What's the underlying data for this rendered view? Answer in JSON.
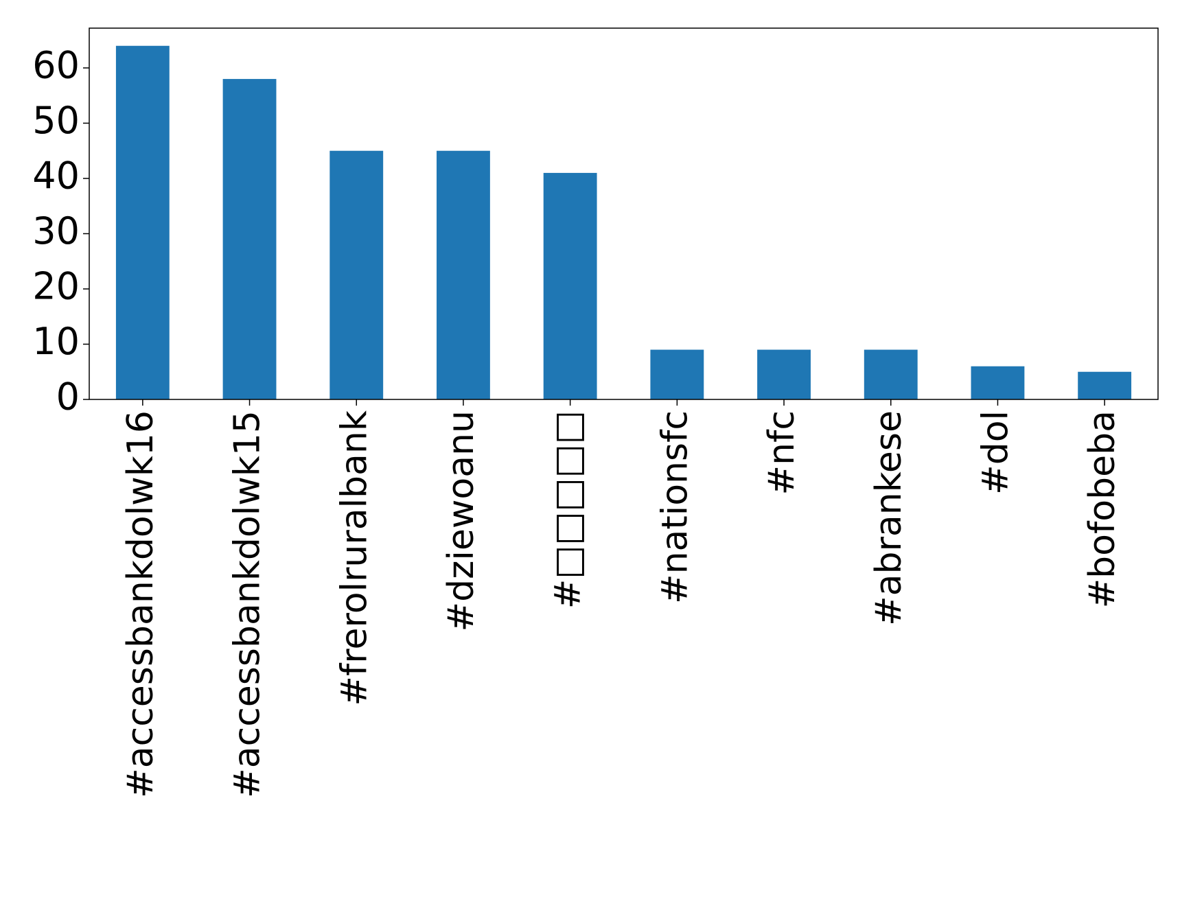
{
  "chart_data": {
    "type": "bar",
    "categories": [
      "#accessbankdolwk16",
      "#accessbankdolwk15",
      "#frerolruralbank",
      "#dziewoanu",
      "#□□□□□",
      "#nationsfc",
      "#nfc",
      "#abrankese",
      "#dol",
      "#bofobeba"
    ],
    "values": [
      64,
      58,
      45,
      45,
      41,
      9,
      9,
      9,
      6,
      5
    ],
    "color": "#1f77b4",
    "ylim": [
      0,
      67.2
    ],
    "yticks": [
      0,
      10,
      20,
      30,
      40,
      50,
      60
    ],
    "grid": false
  }
}
